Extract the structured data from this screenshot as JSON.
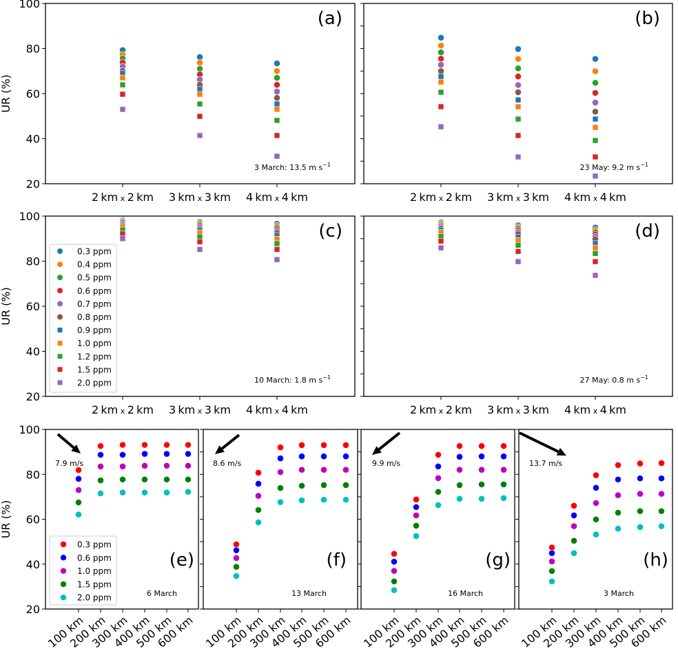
{
  "figure": {
    "ylabel": "UR (%)"
  },
  "chart_data": [
    {
      "id": "a",
      "type": "scatter",
      "panel_label": "(a)",
      "annotation": "3 March: 13.5 m s",
      "annotation_sup": "−1",
      "xlabel": "",
      "ylabel": "UR (%)",
      "ylim": [
        20,
        100
      ],
      "yticks": [
        20,
        40,
        60,
        80,
        100
      ],
      "categories": [
        "2km x 2km",
        "3km x 3km",
        "4km x 4km"
      ],
      "series": [
        {
          "name": "0.3 ppm",
          "color": "#1f77b4",
          "marker": "circle",
          "values": [
            79.3,
            76.2,
            73.4
          ]
        },
        {
          "name": "0.4 ppm",
          "color": "#ff7f0e",
          "marker": "circle",
          "values": [
            77.3,
            73.7,
            70.0
          ]
        },
        {
          "name": "0.5 ppm",
          "color": "#2ca02c",
          "marker": "circle",
          "values": [
            75.6,
            71.0,
            67.0
          ]
        },
        {
          "name": "0.6 ppm",
          "color": "#d62728",
          "marker": "circle",
          "values": [
            73.8,
            68.5,
            63.9
          ]
        },
        {
          "name": "0.7 ppm",
          "color": "#9467bd",
          "marker": "circle",
          "values": [
            72.0,
            66.2,
            60.9
          ]
        },
        {
          "name": "0.8 ppm",
          "color": "#8c564b",
          "marker": "circle",
          "values": [
            70.1,
            63.9,
            58.1
          ]
        },
        {
          "name": "0.9 ppm",
          "color": "#1f77b4",
          "marker": "square",
          "values": [
            69.0,
            61.9,
            55.4
          ]
        },
        {
          "name": "1.0 ppm",
          "color": "#ff7f0e",
          "marker": "square",
          "values": [
            67.0,
            59.7,
            53.0
          ]
        },
        {
          "name": "1.2 ppm",
          "color": "#2ca02c",
          "marker": "square",
          "values": [
            63.9,
            55.4,
            48.1
          ]
        },
        {
          "name": "1.5 ppm",
          "color": "#d62728",
          "marker": "square",
          "values": [
            59.7,
            49.9,
            41.4
          ]
        },
        {
          "name": "2.0 ppm",
          "color": "#9467bd",
          "marker": "square",
          "values": [
            53.0,
            41.4,
            32.2
          ]
        }
      ]
    },
    {
      "id": "b",
      "type": "scatter",
      "panel_label": "(b)",
      "annotation": "23 May: 9.2 m s",
      "annotation_sup": "−1",
      "ylim": [
        20,
        100
      ],
      "yticks": [
        20,
        30,
        40,
        50,
        60,
        70,
        80,
        90,
        100
      ],
      "categories": [
        "2km x 2km",
        "3km x 3km",
        "4km x 4km"
      ],
      "series": [
        {
          "name": "0.3 ppm",
          "color": "#1f77b4",
          "marker": "circle",
          "values": [
            84.8,
            79.8,
            75.4
          ]
        },
        {
          "name": "0.4 ppm",
          "color": "#ff7f0e",
          "marker": "circle",
          "values": [
            81.3,
            75.4,
            69.9
          ]
        },
        {
          "name": "0.5 ppm",
          "color": "#2ca02c",
          "marker": "circle",
          "values": [
            78.3,
            71.2,
            64.8
          ]
        },
        {
          "name": "0.6 ppm",
          "color": "#d62728",
          "marker": "circle",
          "values": [
            75.5,
            67.6,
            60.3
          ]
        },
        {
          "name": "0.7 ppm",
          "color": "#9467bd",
          "marker": "circle",
          "values": [
            72.8,
            63.8,
            56.0
          ]
        },
        {
          "name": "0.8 ppm",
          "color": "#8c564b",
          "marker": "circle",
          "values": [
            70.0,
            60.6,
            52.0
          ]
        },
        {
          "name": "0.9 ppm",
          "color": "#1f77b4",
          "marker": "square",
          "values": [
            67.6,
            57.2,
            48.7
          ]
        },
        {
          "name": "1.0 ppm",
          "color": "#ff7f0e",
          "marker": "square",
          "values": [
            65.1,
            54.2,
            45.0
          ]
        },
        {
          "name": "1.2 ppm",
          "color": "#2ca02c",
          "marker": "square",
          "values": [
            60.6,
            48.7,
            39.2
          ]
        },
        {
          "name": "1.5 ppm",
          "color": "#d62728",
          "marker": "square",
          "values": [
            54.2,
            41.4,
            31.9
          ]
        },
        {
          "name": "2.0 ppm",
          "color": "#9467bd",
          "marker": "square",
          "values": [
            45.3,
            31.9,
            23.4
          ]
        }
      ]
    },
    {
      "id": "c",
      "type": "scatter",
      "panel_label": "(c)",
      "annotation": "10 March: 1.8 m s",
      "annotation_sup": "−1",
      "ylabel": "UR (%)",
      "ylim": [
        20,
        100
      ],
      "yticks": [
        20,
        40,
        60,
        80,
        100
      ],
      "legend": "left",
      "categories": [
        "2km x 2km",
        "3km x 3km",
        "4km x 4km"
      ],
      "series": [
        {
          "name": "0.3 ppm",
          "color": "#1f77b4",
          "marker": "circle",
          "values": [
            98.3,
            97.3,
            96.6
          ]
        },
        {
          "name": "0.4 ppm",
          "color": "#ff7f0e",
          "marker": "circle",
          "values": [
            97.9,
            96.7,
            95.8
          ]
        },
        {
          "name": "0.5 ppm",
          "color": "#2ca02c",
          "marker": "circle",
          "values": [
            97.5,
            96.1,
            95.0
          ]
        },
        {
          "name": "0.6 ppm",
          "color": "#d62728",
          "marker": "circle",
          "values": [
            97.0,
            95.5,
            94.2
          ]
        },
        {
          "name": "0.7 ppm",
          "color": "#9467bd",
          "marker": "circle",
          "values": [
            96.5,
            94.9,
            93.4
          ]
        },
        {
          "name": "0.8 ppm",
          "color": "#8c564b",
          "marker": "circle",
          "values": [
            96.0,
            94.2,
            92.5
          ]
        },
        {
          "name": "0.9 ppm",
          "color": "#1f77b4",
          "marker": "square",
          "values": [
            95.6,
            93.6,
            91.4
          ]
        },
        {
          "name": "1.0 ppm",
          "color": "#ff7f0e",
          "marker": "square",
          "values": [
            95.1,
            92.6,
            89.8
          ]
        },
        {
          "name": "1.2 ppm",
          "color": "#2ca02c",
          "marker": "square",
          "values": [
            93.9,
            90.8,
            87.8
          ]
        },
        {
          "name": "1.5 ppm",
          "color": "#d62728",
          "marker": "square",
          "values": [
            92.1,
            88.6,
            85.2
          ]
        },
        {
          "name": "2.0 ppm",
          "color": "#9467bd",
          "marker": "square",
          "values": [
            90.0,
            85.2,
            80.7
          ]
        }
      ]
    },
    {
      "id": "d",
      "type": "scatter",
      "panel_label": "(d)",
      "annotation": "27 May: 0.8 m s",
      "annotation_sup": "−1",
      "ylim": [
        20,
        100
      ],
      "yticks": [
        20,
        30,
        40,
        50,
        60,
        70,
        80,
        90,
        100
      ],
      "categories": [
        "2km x 2km",
        "3km x 3km",
        "4km x 4km"
      ],
      "series": [
        {
          "name": "0.3 ppm",
          "color": "#1f77b4",
          "marker": "circle",
          "values": [
            97.2,
            95.9,
            94.9
          ]
        },
        {
          "name": "0.4 ppm",
          "color": "#ff7f0e",
          "marker": "circle",
          "values": [
            96.7,
            95.2,
            93.9
          ]
        },
        {
          "name": "0.5 ppm",
          "color": "#2ca02c",
          "marker": "circle",
          "values": [
            96.1,
            94.5,
            92.9
          ]
        },
        {
          "name": "0.6 ppm",
          "color": "#d62728",
          "marker": "circle",
          "values": [
            95.6,
            93.7,
            91.9
          ]
        },
        {
          "name": "0.7 ppm",
          "color": "#9467bd",
          "marker": "circle",
          "values": [
            95.1,
            92.9,
            90.9
          ]
        },
        {
          "name": "0.8 ppm",
          "color": "#8c564b",
          "marker": "circle",
          "values": [
            94.5,
            92.0,
            89.8
          ]
        },
        {
          "name": "0.9 ppm",
          "color": "#1f77b4",
          "marker": "square",
          "values": [
            93.8,
            90.7,
            87.8
          ]
        },
        {
          "name": "1.0 ppm",
          "color": "#ff7f0e",
          "marker": "square",
          "values": [
            92.8,
            89.2,
            85.9
          ]
        },
        {
          "name": "1.2 ppm",
          "color": "#2ca02c",
          "marker": "square",
          "values": [
            91.0,
            87.1,
            83.4
          ]
        },
        {
          "name": "1.5 ppm",
          "color": "#d62728",
          "marker": "square",
          "values": [
            88.9,
            84.3,
            79.8
          ]
        },
        {
          "name": "2.0 ppm",
          "color": "#9467bd",
          "marker": "square",
          "values": [
            85.9,
            79.8,
            73.7
          ]
        }
      ]
    },
    {
      "id": "e",
      "type": "scatter",
      "panel_label": "(e)",
      "annotation": "6 March",
      "wind_label": "7.9 m/s",
      "wind_direction": "southeast",
      "ylabel": "UR (%)",
      "ylim": [
        20,
        100
      ],
      "yticks": [
        20,
        40,
        60,
        80,
        100
      ],
      "legend": "lower-left",
      "categories": [
        "100 km",
        "200 km",
        "300 km",
        "400 km",
        "500 km",
        "600 km"
      ],
      "series": [
        {
          "name": "0.3 ppm",
          "color": "#ff0000",
          "values": [
            81.9,
            92.6,
            93.1,
            93.1,
            93.1,
            93.1
          ]
        },
        {
          "name": "0.6 ppm",
          "color": "#0000ff",
          "values": [
            78.0,
            88.7,
            88.7,
            89.1,
            89.1,
            89.1
          ]
        },
        {
          "name": "1.0 ppm",
          "color": "#bf00bf",
          "values": [
            73.0,
            83.5,
            83.5,
            83.8,
            83.8,
            83.8
          ]
        },
        {
          "name": "1.5 ppm",
          "color": "#008000",
          "values": [
            67.5,
            77.3,
            77.7,
            77.7,
            77.7,
            77.7
          ]
        },
        {
          "name": "2.0 ppm",
          "color": "#00bfbf",
          "values": [
            62.1,
            71.5,
            71.9,
            71.9,
            71.9,
            72.2
          ]
        }
      ]
    },
    {
      "id": "f",
      "type": "scatter",
      "panel_label": "(f)",
      "annotation": "13 March",
      "wind_label": "8.6 m/s",
      "wind_direction": "southwest",
      "ylim": [
        20,
        100
      ],
      "yticks": [
        20,
        30,
        40,
        50,
        60,
        70,
        80,
        90,
        100
      ],
      "categories": [
        "100 km",
        "200 km",
        "300 km",
        "400 km",
        "500 km",
        "600 km"
      ],
      "series": [
        {
          "name": "0.3 ppm",
          "color": "#ff0000",
          "values": [
            48.8,
            80.7,
            92.0,
            93.0,
            93.0,
            93.0
          ]
        },
        {
          "name": "0.6 ppm",
          "color": "#0000ff",
          "values": [
            46.2,
            75.8,
            87.1,
            88.0,
            88.0,
            88.0
          ]
        },
        {
          "name": "1.0 ppm",
          "color": "#bf00bf",
          "values": [
            42.7,
            70.4,
            81.0,
            82.0,
            82.0,
            82.0
          ]
        },
        {
          "name": "1.5 ppm",
          "color": "#008000",
          "values": [
            38.8,
            64.1,
            73.9,
            74.9,
            75.2,
            75.2
          ]
        },
        {
          "name": "2.0 ppm",
          "color": "#00bfbf",
          "values": [
            34.7,
            58.6,
            67.6,
            68.4,
            68.7,
            68.7
          ]
        }
      ]
    },
    {
      "id": "g",
      "type": "scatter",
      "panel_label": "(g)",
      "annotation": "16 March",
      "wind_label": "9.9 m/s",
      "wind_direction": "southwest",
      "ylim": [
        20,
        100
      ],
      "yticks": [
        20,
        30,
        40,
        50,
        60,
        70,
        80,
        90,
        100
      ],
      "categories": [
        "100 km",
        "200 km",
        "300 km",
        "400 km",
        "500 km",
        "600 km"
      ],
      "series": [
        {
          "name": "0.3 ppm",
          "color": "#ff0000",
          "values": [
            44.6,
            68.8,
            88.7,
            92.6,
            92.6,
            92.6
          ]
        },
        {
          "name": "0.6 ppm",
          "color": "#0000ff",
          "values": [
            41.1,
            65.4,
            83.5,
            87.8,
            88.0,
            88.0
          ]
        },
        {
          "name": "1.0 ppm",
          "color": "#bf00bf",
          "values": [
            37.0,
            61.7,
            78.3,
            82.0,
            82.0,
            82.0
          ]
        },
        {
          "name": "1.5 ppm",
          "color": "#008000",
          "values": [
            32.3,
            57.1,
            72.2,
            75.2,
            75.5,
            75.5
          ]
        },
        {
          "name": "2.0 ppm",
          "color": "#00bfbf",
          "values": [
            28.4,
            52.5,
            66.3,
            69.1,
            69.1,
            69.4
          ]
        }
      ]
    },
    {
      "id": "h",
      "type": "scatter",
      "panel_label": "(h)",
      "annotation": "3 March",
      "wind_label": "13.7 m/s",
      "wind_direction": "southeast",
      "ylim": [
        20,
        100
      ],
      "yticks": [
        20,
        30,
        40,
        50,
        60,
        70,
        80,
        90,
        100
      ],
      "categories": [
        "100 km",
        "200 km",
        "300 km",
        "400 km",
        "500 km",
        "600 km"
      ],
      "series": [
        {
          "name": "0.3 ppm",
          "color": "#ff0000",
          "values": [
            47.4,
            66.0,
            79.6,
            84.1,
            84.8,
            85.0
          ]
        },
        {
          "name": "0.6 ppm",
          "color": "#0000ff",
          "values": [
            44.9,
            61.7,
            74.0,
            77.7,
            78.2,
            78.2
          ]
        },
        {
          "name": "1.0 ppm",
          "color": "#bf00bf",
          "values": [
            41.2,
            56.9,
            67.2,
            70.7,
            71.3,
            71.3
          ]
        },
        {
          "name": "1.5 ppm",
          "color": "#008000",
          "values": [
            36.9,
            50.4,
            59.9,
            62.9,
            63.6,
            63.6
          ]
        },
        {
          "name": "2.0 ppm",
          "color": "#00bfbf",
          "values": [
            32.3,
            44.9,
            53.2,
            55.8,
            56.5,
            56.9
          ]
        }
      ]
    }
  ]
}
